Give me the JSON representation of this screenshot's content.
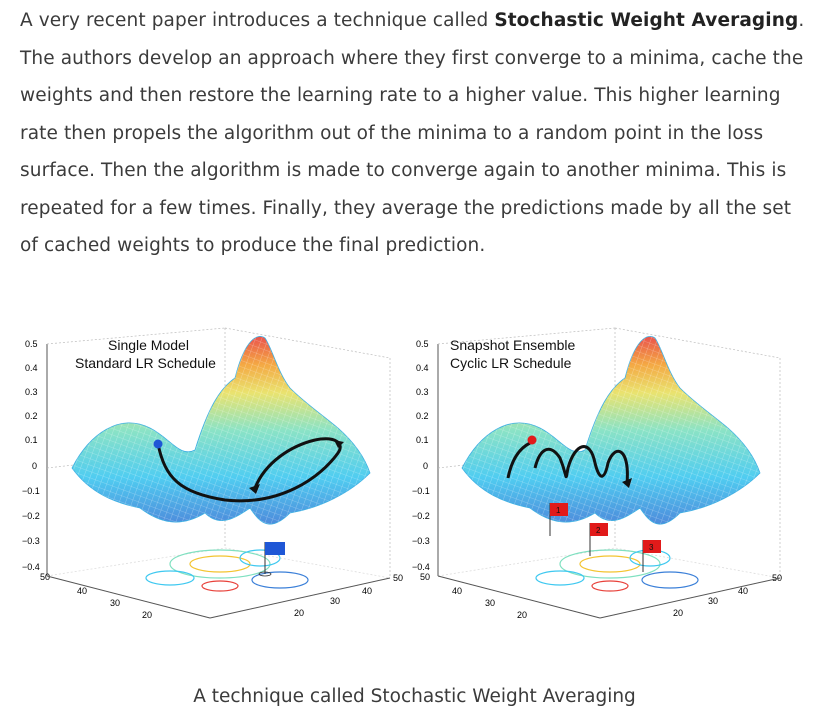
{
  "article": {
    "text_before": "A very recent paper introduces a technique called ",
    "highlight": "Stochastic Weight Averaging",
    "text_after": ". The authors develop an approach where they first converge to a minima, cache the weights and then restore the learning rate to a higher value. This higher learning rate then propels the algorithm out of the minima to a random point in the loss surface. Then the algorithm is made to converge again to another minima. This is repeated for a few times. Finally, they average the predictions made by all the set of cached weights to produce the final prediction."
  },
  "figure": {
    "left_panel": {
      "title_line1": "Single Model",
      "title_line2": "Standard LR Schedule"
    },
    "right_panel": {
      "title_line1": "Snapshot Ensemble",
      "title_line2": "Cyclic LR Schedule"
    },
    "z_ticks": [
      "0.5",
      "0.4",
      "0.3",
      "0.2",
      "0.1",
      "0",
      "−0.1",
      "−0.2",
      "−0.3",
      "−0.4"
    ],
    "y_ticks": [
      "50",
      "40",
      "30",
      "20"
    ],
    "x_ticks": [
      "20",
      "30",
      "40",
      "50"
    ],
    "flag_labels": [
      "1",
      "2",
      "3"
    ],
    "colors": {
      "surface_cool": "#3ec8f0",
      "surface_warm": "#f3c430",
      "peak": "#e8413a",
      "path": "#111111",
      "flag_blue": "#1f57d6",
      "flag_red": "#e11a1a"
    }
  },
  "caption": "A technique called Stochastic Weight Averaging"
}
